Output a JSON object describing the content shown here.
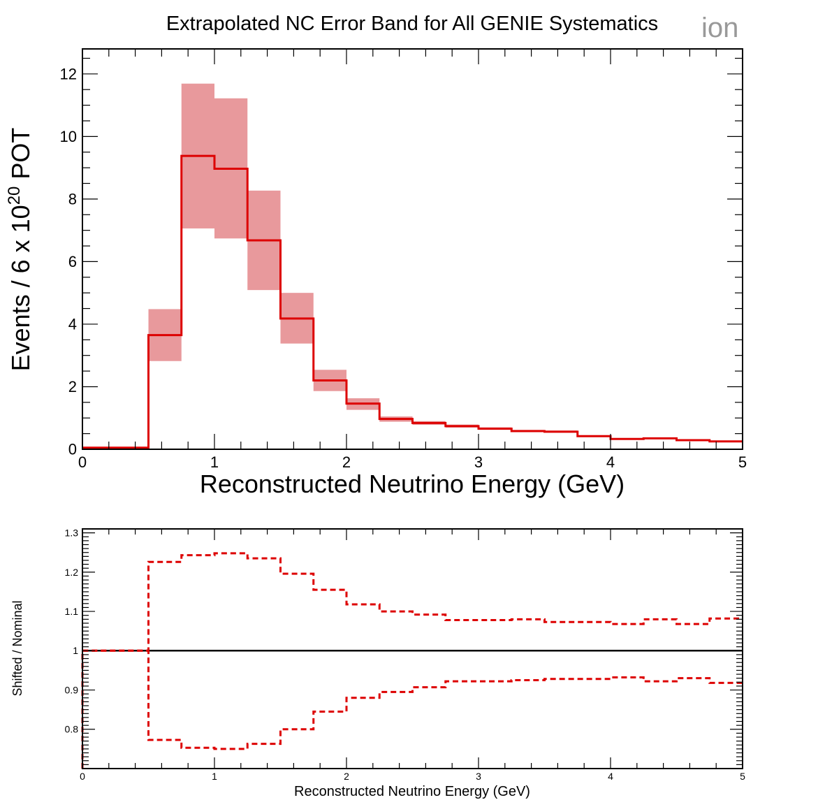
{
  "figure": {
    "title": "Extrapolated NC Error Band for All GENIE Systematics",
    "watermark": "ion"
  },
  "colors": {
    "nominal_line": "#dd0000",
    "error_band": "#e8999c",
    "ratio_line": "#dd0000",
    "unity_line": "#000000",
    "axis": "#000000",
    "watermark": "#999999"
  },
  "chart_data": [
    {
      "type": "histogram",
      "xlabel": "Reconstructed Neutrino Energy (GeV)",
      "ylabel": "Events / 6 x 10",
      "ylabel_superscript": "20",
      "ylabel_suffix": " POT",
      "xlim": [
        0,
        5
      ],
      "ylim": [
        0,
        12.8
      ],
      "xticks": [
        0,
        1,
        2,
        3,
        4,
        5
      ],
      "xtick_labels": [
        "0",
        "1",
        "2",
        "3",
        "4",
        "5"
      ],
      "yticks": [
        0,
        2,
        4,
        6,
        8,
        10,
        12
      ],
      "ytick_labels": [
        "0",
        "2",
        "4",
        "6",
        "8",
        "10",
        "12"
      ],
      "bin_edges": [
        0,
        0.25,
        0.5,
        0.75,
        1.0,
        1.25,
        1.5,
        1.75,
        2.0,
        2.25,
        2.5,
        2.75,
        3.0,
        3.25,
        3.5,
        3.75,
        4.0,
        4.25,
        4.5,
        4.75,
        5.0
      ],
      "series": [
        {
          "name": "nominal",
          "style": "solid-step",
          "values": [
            0.05,
            0.05,
            3.65,
            9.38,
            8.97,
            6.68,
            4.18,
            2.2,
            1.46,
            0.97,
            0.84,
            0.74,
            0.66,
            0.58,
            0.56,
            0.42,
            0.33,
            0.35,
            0.29,
            0.25
          ]
        },
        {
          "name": "error_band",
          "style": "filled-band",
          "low": [
            0.05,
            0.05,
            2.82,
            7.06,
            6.74,
            5.09,
            3.38,
            1.86,
            1.26,
            0.88,
            0.78,
            0.69,
            0.62,
            0.55,
            0.53,
            0.39,
            0.31,
            0.33,
            0.27,
            0.23
          ],
          "high": [
            0.05,
            0.05,
            4.48,
            11.69,
            11.22,
            8.27,
            5.0,
            2.54,
            1.63,
            1.05,
            0.9,
            0.79,
            0.7,
            0.62,
            0.6,
            0.45,
            0.35,
            0.37,
            0.31,
            0.27
          ]
        }
      ]
    },
    {
      "type": "line",
      "xlabel": "Reconstructed Neutrino Energy (GeV)",
      "ylabel": "Shifted / Nominal",
      "xlim": [
        0,
        5
      ],
      "ylim": [
        0.7,
        1.31
      ],
      "xticks": [
        0,
        1,
        2,
        3,
        4,
        5
      ],
      "xtick_labels": [
        "0",
        "1",
        "2",
        "3",
        "4",
        "5"
      ],
      "yticks": [
        0.8,
        0.9,
        1.0,
        1.1,
        1.2,
        1.3
      ],
      "ytick_labels": [
        "0.8",
        "0.9",
        "1",
        "1.1",
        "1.2",
        "1.3"
      ],
      "reference_line": 1.0,
      "bin_edges": [
        0,
        0.25,
        0.5,
        0.75,
        1.0,
        1.25,
        1.5,
        1.75,
        2.0,
        2.25,
        2.5,
        2.75,
        3.0,
        3.25,
        3.5,
        3.75,
        4.0,
        4.25,
        4.5,
        4.75,
        5.0
      ],
      "series": [
        {
          "name": "upper_ratio",
          "style": "dashed-step",
          "values": [
            1.0,
            1.0,
            1.226,
            1.243,
            1.248,
            1.235,
            1.196,
            1.155,
            1.118,
            1.1,
            1.092,
            1.078,
            1.078,
            1.08,
            1.073,
            1.073,
            1.068,
            1.08,
            1.068,
            1.082
          ]
        },
        {
          "name": "lower_ratio",
          "style": "dashed-step",
          "values": [
            1.0,
            1.0,
            0.773,
            0.753,
            0.75,
            0.763,
            0.8,
            0.845,
            0.88,
            0.895,
            0.907,
            0.922,
            0.922,
            0.925,
            0.928,
            0.928,
            0.932,
            0.922,
            0.93,
            0.918
          ]
        }
      ]
    }
  ]
}
